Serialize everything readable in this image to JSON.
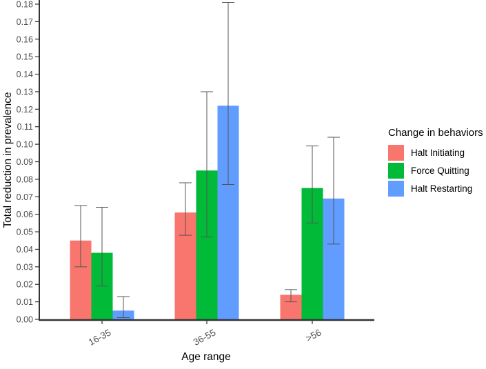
{
  "figure": {
    "background": "#FFFFFF"
  },
  "chart_data": {
    "type": "bar",
    "title": "",
    "xlabel": "Age range",
    "ylabel": "Total reduction in prevalence",
    "categories": [
      "16-35",
      "36-55",
      ">56"
    ],
    "series": [
      {
        "name": "Halt Initiating",
        "color": "#F8766D",
        "values": [
          0.045,
          0.061,
          0.014
        ],
        "error_low": [
          0.03,
          0.048,
          0.01
        ],
        "error_high": [
          0.065,
          0.078,
          0.017
        ]
      },
      {
        "name": "Force Quitting",
        "color": "#00BA38",
        "values": [
          0.038,
          0.085,
          0.075
        ],
        "error_low": [
          0.019,
          0.047,
          0.055
        ],
        "error_high": [
          0.064,
          0.13,
          0.099
        ]
      },
      {
        "name": "Halt Restarting",
        "color": "#619CFF",
        "values": [
          0.005,
          0.122,
          0.069
        ],
        "error_low": [
          0.001,
          0.077,
          0.043
        ],
        "error_high": [
          0.013,
          0.181,
          0.104
        ]
      }
    ],
    "ylim": [
      0,
      0.18
    ],
    "ytick_step": 0.01,
    "grid": false,
    "legend_title": "Change in behaviors",
    "legend_position": "right",
    "axis_color": "#333333",
    "tick_label_color": "#4D4D4D",
    "error_bar_color": "#555555"
  }
}
